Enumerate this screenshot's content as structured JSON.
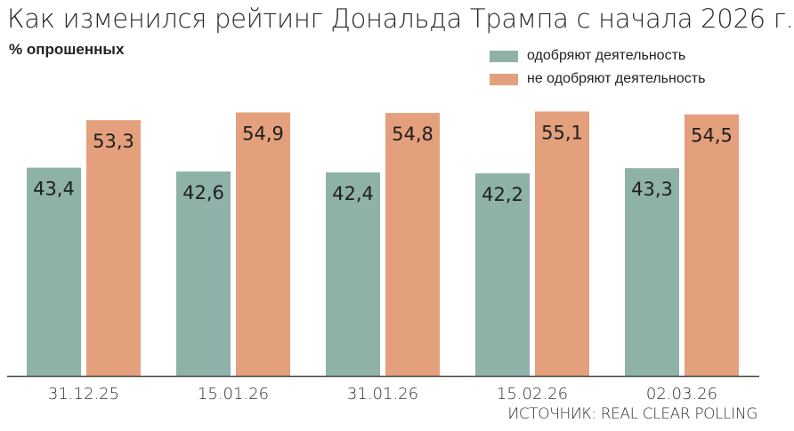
{
  "title": "Как изменился рейтинг Дональда Трампа с начала 2026 г.",
  "unit_label": "% опрошенных",
  "source": "ИСТОЧНИК: REAL CLEAR POLLING",
  "colors": {
    "approve": "#8FB2A8",
    "disapprove": "#E4A07C",
    "axis": "#444444"
  },
  "chart_data": {
    "type": "bar",
    "categories": [
      "31.12.25",
      "15.01.26",
      "31.01.26",
      "15.02.26",
      "02.03.26"
    ],
    "series": [
      {
        "name": "одобряют деятельность",
        "values": [
          43.4,
          42.6,
          42.4,
          42.2,
          43.3
        ],
        "labels": [
          "43,4",
          "42,6",
          "42,4",
          "42,2",
          "43,3"
        ]
      },
      {
        "name": "не одобряют деятельность",
        "values": [
          53.3,
          54.9,
          54.8,
          55.1,
          54.5
        ],
        "labels": [
          "53,3",
          "54,9",
          "54,8",
          "55,1",
          "54,5"
        ]
      }
    ],
    "ylabel": "% опрошенных",
    "legend_position": "top-right",
    "grid": false
  }
}
